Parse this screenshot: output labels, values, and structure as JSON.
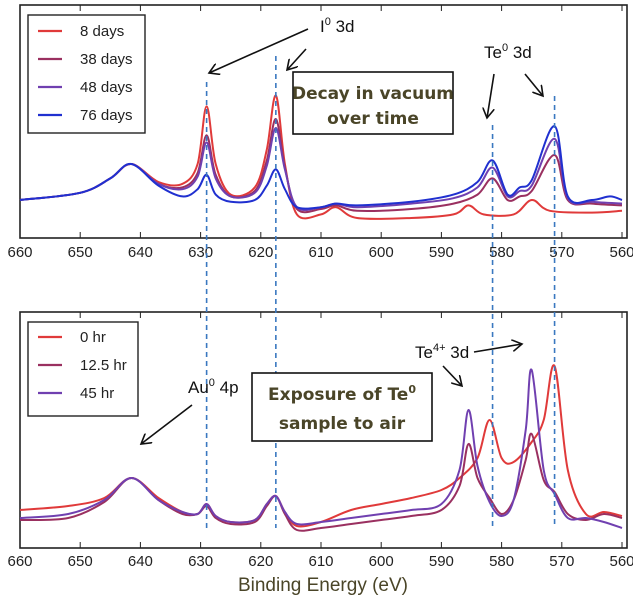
{
  "chart_data": [
    {
      "panel": "top",
      "type": "line",
      "title": "",
      "xlabel": "",
      "ylabel": "",
      "xlim": [
        660,
        560
      ],
      "x_reversed": true,
      "y_ticks_shown": false,
      "grid": false,
      "x_ticks": [
        660,
        650,
        640,
        630,
        620,
        610,
        600,
        590,
        580,
        570,
        560
      ],
      "legend_position": "top-left",
      "series": [
        {
          "name": "8 days",
          "color": "#e03a3a",
          "points": [
            [
              660,
              0.1
            ],
            [
              650,
              0.14
            ],
            [
              645,
              0.22
            ],
            [
              641.5,
              0.3
            ],
            [
              637,
              0.2
            ],
            [
              633,
              0.19
            ],
            [
              630.5,
              0.3
            ],
            [
              629,
              0.62
            ],
            [
              627.5,
              0.3
            ],
            [
              625,
              0.13
            ],
            [
              621,
              0.17
            ],
            [
              619,
              0.38
            ],
            [
              617.5,
              0.68
            ],
            [
              616,
              0.3
            ],
            [
              614,
              0.02
            ],
            [
              610,
              0.02
            ],
            [
              607.5,
              0.06
            ],
            [
              604,
              0.0
            ],
            [
              595,
              0.0
            ],
            [
              588,
              0.02
            ],
            [
              585.5,
              0.07
            ],
            [
              583,
              0.02
            ],
            [
              578,
              0.02
            ],
            [
              575,
              0.1
            ],
            [
              572,
              0.04
            ],
            [
              565,
              0.03
            ],
            [
              560,
              0.04
            ]
          ]
        },
        {
          "name": "38 days",
          "color": "#9a3060",
          "points": [
            [
              660,
              0.1
            ],
            [
              650,
              0.14
            ],
            [
              645,
              0.22
            ],
            [
              641.5,
              0.3
            ],
            [
              637,
              0.19
            ],
            [
              633,
              0.17
            ],
            [
              630.5,
              0.25
            ],
            [
              629,
              0.46
            ],
            [
              627.5,
              0.24
            ],
            [
              625,
              0.12
            ],
            [
              621,
              0.15
            ],
            [
              619,
              0.32
            ],
            [
              617.5,
              0.55
            ],
            [
              616,
              0.28
            ],
            [
              614,
              0.05
            ],
            [
              610,
              0.05
            ],
            [
              607.5,
              0.07
            ],
            [
              604,
              0.04
            ],
            [
              595,
              0.05
            ],
            [
              588,
              0.08
            ],
            [
              584,
              0.13
            ],
            [
              581.5,
              0.22
            ],
            [
              579,
              0.1
            ],
            [
              577,
              0.12
            ],
            [
              575,
              0.15
            ],
            [
              571.2,
              0.35
            ],
            [
              569,
              0.1
            ],
            [
              565,
              0.08
            ],
            [
              560,
              0.07
            ]
          ]
        },
        {
          "name": "48 days",
          "color": "#7040b0",
          "points": [
            [
              660,
              0.1
            ],
            [
              650,
              0.14
            ],
            [
              645,
              0.22
            ],
            [
              641.5,
              0.3
            ],
            [
              637,
              0.19
            ],
            [
              633,
              0.16
            ],
            [
              630.5,
              0.23
            ],
            [
              629,
              0.42
            ],
            [
              627.5,
              0.22
            ],
            [
              625,
              0.12
            ],
            [
              621,
              0.14
            ],
            [
              619,
              0.29
            ],
            [
              617.5,
              0.5
            ],
            [
              616,
              0.27
            ],
            [
              614,
              0.06
            ],
            [
              610,
              0.06
            ],
            [
              607.5,
              0.08
            ],
            [
              604,
              0.06
            ],
            [
              595,
              0.08
            ],
            [
              588,
              0.11
            ],
            [
              584,
              0.17
            ],
            [
              581.5,
              0.28
            ],
            [
              579,
              0.12
            ],
            [
              577,
              0.15
            ],
            [
              575,
              0.18
            ],
            [
              571.2,
              0.44
            ],
            [
              569,
              0.11
            ],
            [
              565,
              0.09
            ],
            [
              560,
              0.08
            ]
          ]
        },
        {
          "name": "76 days",
          "color": "#2030d0",
          "points": [
            [
              660,
              0.1
            ],
            [
              650,
              0.14
            ],
            [
              645,
              0.22
            ],
            [
              641.5,
              0.3
            ],
            [
              637,
              0.18
            ],
            [
              633,
              0.12
            ],
            [
              630.5,
              0.16
            ],
            [
              629,
              0.24
            ],
            [
              627.5,
              0.13
            ],
            [
              625,
              0.09
            ],
            [
              621,
              0.1
            ],
            [
              619,
              0.18
            ],
            [
              617.5,
              0.27
            ],
            [
              616,
              0.16
            ],
            [
              614,
              0.06
            ],
            [
              610,
              0.06
            ],
            [
              607.5,
              0.08
            ],
            [
              604,
              0.07
            ],
            [
              595,
              0.09
            ],
            [
              588,
              0.13
            ],
            [
              584,
              0.2
            ],
            [
              581.5,
              0.32
            ],
            [
              579,
              0.13
            ],
            [
              577,
              0.17
            ],
            [
              575,
              0.21
            ],
            [
              571.2,
              0.51
            ],
            [
              569,
              0.12
            ],
            [
              565,
              0.1
            ],
            [
              562,
              0.12
            ],
            [
              560,
              0.1
            ]
          ]
        }
      ],
      "annotations": [
        {
          "text": "I",
          "sup": "0",
          "after": " 3d",
          "targets": [
            629,
            617.5
          ]
        },
        {
          "text": "Te",
          "sup": "0",
          "after": " 3d",
          "targets": [
            581.5,
            571.2
          ]
        },
        {
          "text": "Decay in vacuum over time",
          "boxed": true
        }
      ],
      "reference_lines": [
        629,
        617.5,
        581.5,
        571.2
      ]
    },
    {
      "panel": "bottom",
      "type": "line",
      "title": "",
      "xlabel": "Binding Energy (eV)",
      "ylabel": "",
      "xlim": [
        660,
        560
      ],
      "x_reversed": true,
      "y_ticks_shown": false,
      "grid": false,
      "x_ticks": [
        660,
        650,
        640,
        630,
        620,
        610,
        600,
        590,
        580,
        570,
        560
      ],
      "legend_position": "top-left",
      "series": [
        {
          "name": "0 hr",
          "color": "#e03a3a",
          "points": [
            [
              660,
              0.1
            ],
            [
              652,
              0.12
            ],
            [
              646,
              0.16
            ],
            [
              641.5,
              0.26
            ],
            [
              637,
              0.16
            ],
            [
              633,
              0.09
            ],
            [
              630.5,
              0.08
            ],
            [
              629,
              0.13
            ],
            [
              627.5,
              0.07
            ],
            [
              625,
              0.04
            ],
            [
              621,
              0.05
            ],
            [
              619,
              0.13
            ],
            [
              617.5,
              0.17
            ],
            [
              616,
              0.09
            ],
            [
              614,
              0.02
            ],
            [
              610,
              0.04
            ],
            [
              605,
              0.1
            ],
            [
              600,
              0.13
            ],
            [
              595,
              0.16
            ],
            [
              590,
              0.2
            ],
            [
              587,
              0.26
            ],
            [
              584,
              0.36
            ],
            [
              582,
              0.55
            ],
            [
              580,
              0.36
            ],
            [
              578,
              0.34
            ],
            [
              575,
              0.44
            ],
            [
              573,
              0.55
            ],
            [
              571.2,
              0.82
            ],
            [
              569,
              0.3
            ],
            [
              566,
              0.08
            ],
            [
              563,
              0.09
            ],
            [
              560,
              0.07
            ]
          ]
        },
        {
          "name": "12.5 hr",
          "color": "#9a3060",
          "points": [
            [
              660,
              0.05
            ],
            [
              652,
              0.06
            ],
            [
              646,
              0.14
            ],
            [
              641.5,
              0.26
            ],
            [
              637,
              0.15
            ],
            [
              633,
              0.08
            ],
            [
              630.5,
              0.08
            ],
            [
              629,
              0.12
            ],
            [
              627.5,
              0.06
            ],
            [
              625,
              0.03
            ],
            [
              621,
              0.04
            ],
            [
              619,
              0.12
            ],
            [
              617.5,
              0.17
            ],
            [
              616,
              0.08
            ],
            [
              614,
              0.0
            ],
            [
              610,
              0.01
            ],
            [
              605,
              0.03
            ],
            [
              600,
              0.05
            ],
            [
              595,
              0.07
            ],
            [
              590,
              0.1
            ],
            [
              587,
              0.22
            ],
            [
              585.5,
              0.43
            ],
            [
              584,
              0.26
            ],
            [
              582,
              0.16
            ],
            [
              580,
              0.08
            ],
            [
              578,
              0.15
            ],
            [
              576,
              0.35
            ],
            [
              575,
              0.48
            ],
            [
              573,
              0.25
            ],
            [
              571.2,
              0.19
            ],
            [
              569,
              0.08
            ],
            [
              566,
              0.05
            ],
            [
              563,
              0.08
            ],
            [
              560,
              0.06
            ]
          ]
        },
        {
          "name": "45 hr",
          "color": "#7040b0",
          "points": [
            [
              660,
              0.06
            ],
            [
              652,
              0.08
            ],
            [
              646,
              0.15
            ],
            [
              641.5,
              0.26
            ],
            [
              637,
              0.15
            ],
            [
              633,
              0.09
            ],
            [
              630.5,
              0.08
            ],
            [
              629,
              0.13
            ],
            [
              627.5,
              0.07
            ],
            [
              625,
              0.04
            ],
            [
              621,
              0.05
            ],
            [
              619,
              0.13
            ],
            [
              617.5,
              0.17
            ],
            [
              616,
              0.09
            ],
            [
              614,
              0.03
            ],
            [
              610,
              0.04
            ],
            [
              605,
              0.06
            ],
            [
              600,
              0.08
            ],
            [
              595,
              0.1
            ],
            [
              590,
              0.13
            ],
            [
              587,
              0.3
            ],
            [
              585.5,
              0.6
            ],
            [
              584,
              0.32
            ],
            [
              582,
              0.14
            ],
            [
              580,
              0.07
            ],
            [
              578,
              0.15
            ],
            [
              576,
              0.5
            ],
            [
              575,
              0.8
            ],
            [
              573,
              0.3
            ],
            [
              571.2,
              0.18
            ],
            [
              569,
              0.06
            ],
            [
              566,
              0.06
            ],
            [
              563,
              0.04
            ],
            [
              560,
              0.01
            ]
          ]
        }
      ],
      "annotations": [
        {
          "text": "Au",
          "sup": "0",
          "after": " 4p",
          "targets": [
            641.5
          ]
        },
        {
          "text": "Te",
          "sup": "4+",
          "after": " 3d",
          "targets": [
            585.5,
            575
          ]
        },
        {
          "text": "Exposure of Te0 sample to air",
          "boxed": true
        }
      ],
      "reference_lines": [
        629,
        617.5,
        581.5,
        571.2
      ]
    }
  ],
  "labels": {
    "top_legend": [
      "8 days",
      "38 days",
      "48 days",
      "76 days"
    ],
    "bottom_legend": [
      "0 hr",
      "12.5 hr",
      "45 hr"
    ],
    "i_anno_main": "I",
    "i_anno_sup": "0",
    "i_anno_rest": " 3d",
    "te0_anno_main": "Te",
    "te0_anno_sup": "0",
    "te0_anno_rest": " 3d",
    "decay_box_line1": "Decay in vacuum",
    "decay_box_line2": "over time",
    "au_anno_main": "Au",
    "au_anno_sup": "0",
    "au_anno_rest": " 4p",
    "te4_anno_main": "Te",
    "te4_anno_sup": "4+",
    "te4_anno_rest": " 3d",
    "exposure_box_line1_main": "Exposure of Te",
    "exposure_box_line1_sup": "0",
    "exposure_box_line2": "sample to air",
    "xlabel": "Binding Energy (eV)"
  },
  "colors": {
    "reference_line": "#3a78c0",
    "frame": "#222222",
    "box_text": "#4a4528"
  }
}
